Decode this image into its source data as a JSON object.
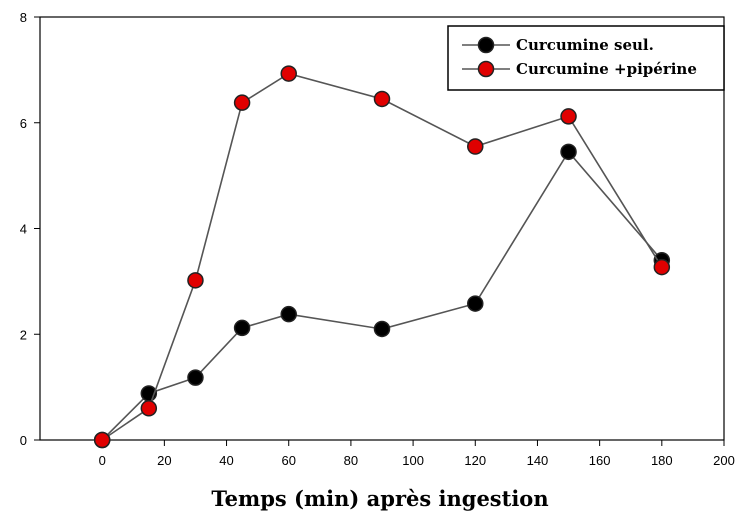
{
  "chart_data": {
    "type": "line",
    "title": "",
    "xlabel": "Temps (min) après ingestion",
    "ylabel": "",
    "xlim": [
      -20,
      200
    ],
    "ylim": [
      0,
      8
    ],
    "xticks": [
      0,
      20,
      40,
      60,
      80,
      100,
      120,
      140,
      160,
      180,
      200
    ],
    "yticks": [
      0,
      2,
      4,
      6,
      8
    ],
    "grid": false,
    "legend_position": "top-right",
    "x": [
      0,
      15,
      30,
      45,
      60,
      90,
      120,
      150,
      180
    ],
    "series": [
      {
        "name": "Curcumine seul.",
        "color": "#000000",
        "marker": "circle",
        "values": [
          0,
          0.88,
          1.18,
          2.12,
          2.38,
          2.1,
          2.58,
          5.45,
          3.4
        ]
      },
      {
        "name": "Curcumine +pipérine",
        "color": "#e00000",
        "marker": "circle",
        "values": [
          0,
          0.6,
          3.02,
          6.38,
          6.93,
          6.45,
          5.55,
          6.12,
          3.27
        ]
      }
    ]
  }
}
